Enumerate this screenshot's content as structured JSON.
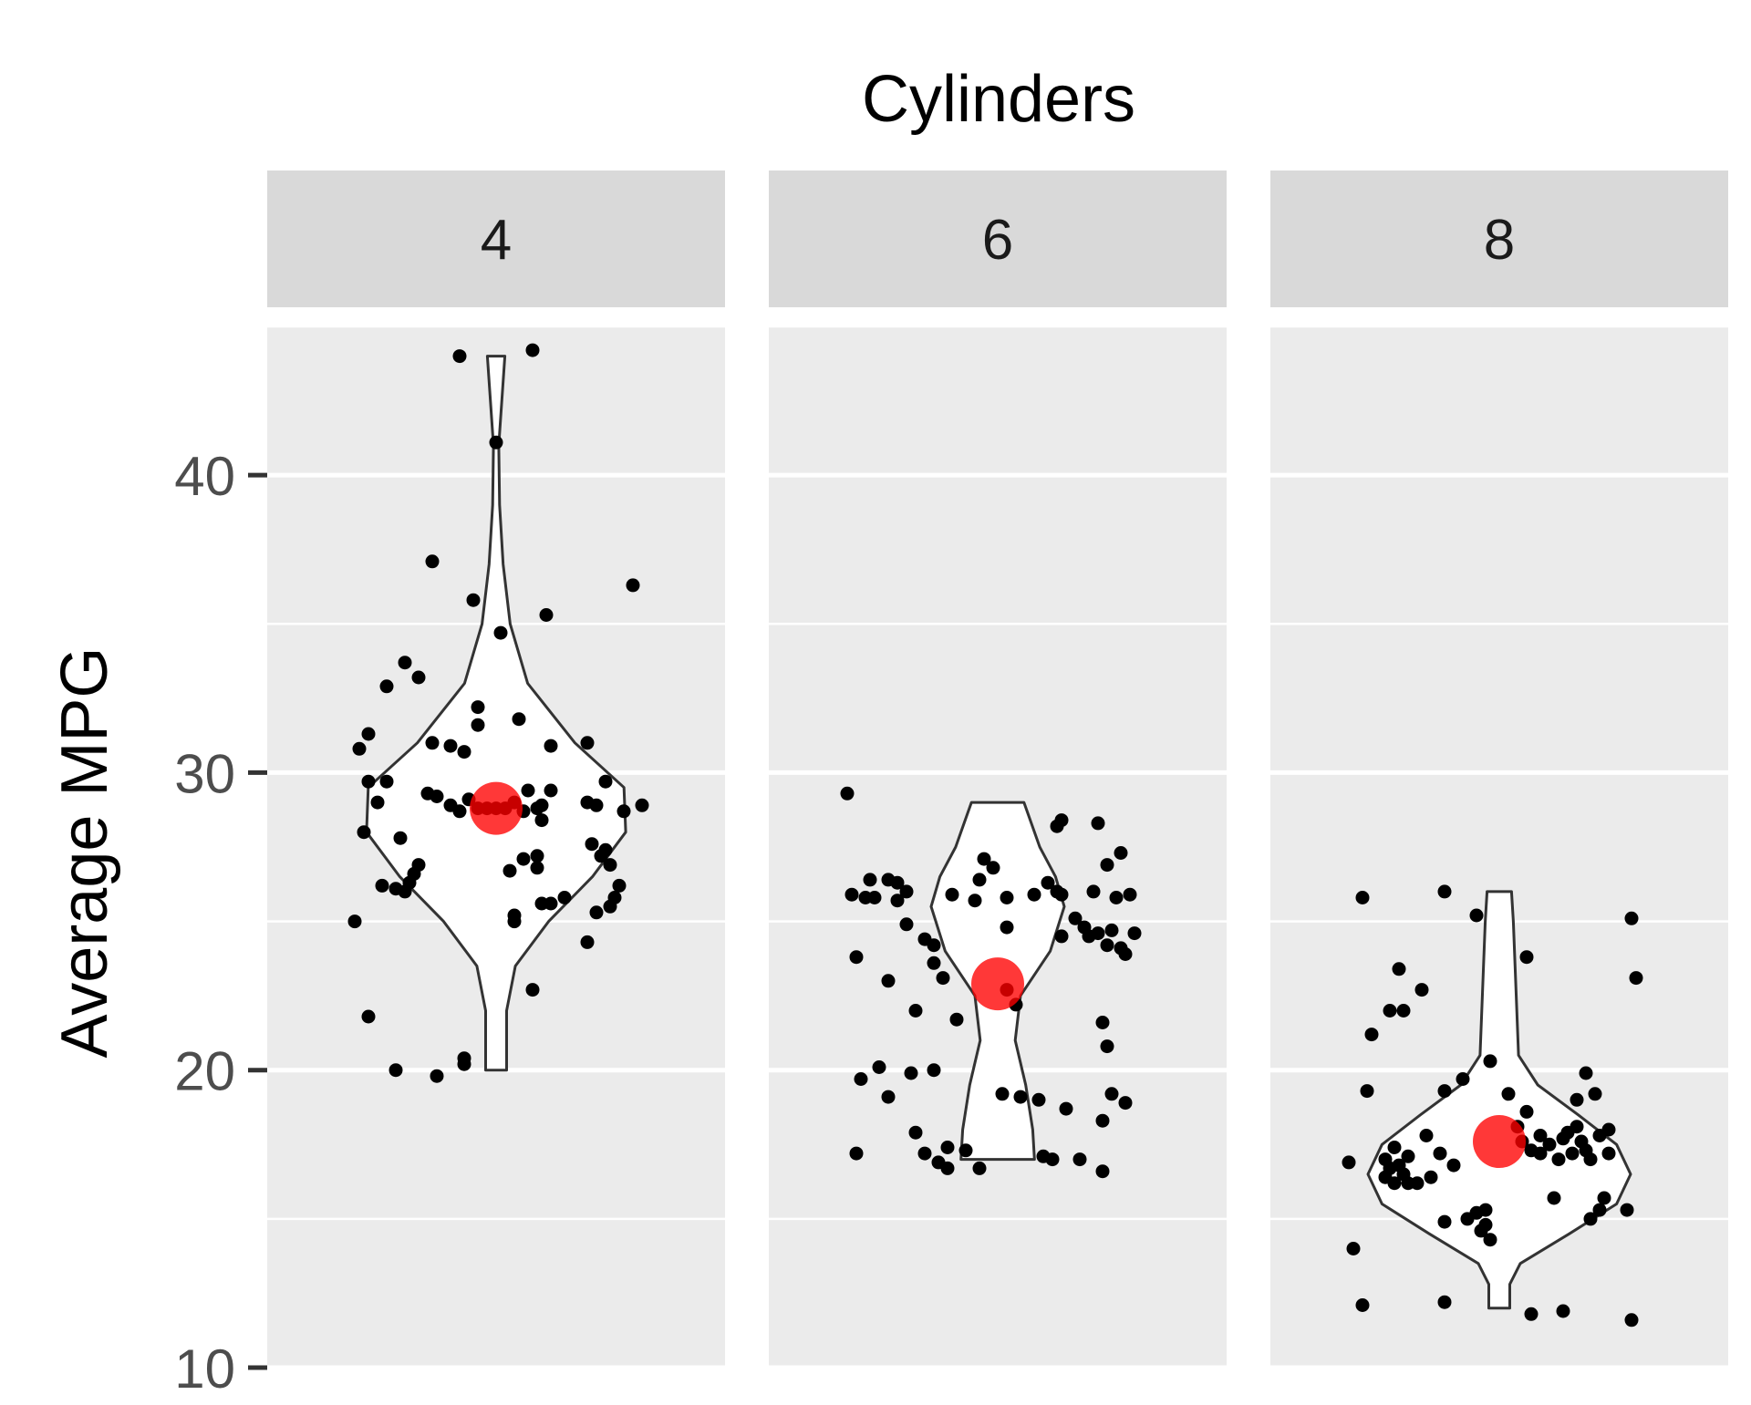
{
  "chart_data": {
    "type": "violin",
    "title": "Cylinders",
    "xlabel": "",
    "ylabel": "Average MPG",
    "ylim": [
      10,
      45
    ],
    "yticks": [
      10,
      20,
      30,
      40
    ],
    "grid": true,
    "facets": [
      {
        "label": "4",
        "mean": 28.8,
        "violin_range": [
          20,
          44
        ],
        "density": [
          [
            20.0,
            0.06
          ],
          [
            22.0,
            0.06
          ],
          [
            23.5,
            0.11
          ],
          [
            25.0,
            0.3
          ],
          [
            26.5,
            0.55
          ],
          [
            28.0,
            0.74
          ],
          [
            29.5,
            0.73
          ],
          [
            31.0,
            0.45
          ],
          [
            33.0,
            0.18
          ],
          [
            35.0,
            0.08
          ],
          [
            37.0,
            0.04
          ],
          [
            39.0,
            0.02
          ],
          [
            41.0,
            0.015
          ],
          [
            44.0,
            0.05
          ]
        ],
        "points": [
          [
            -0.28,
            21.8
          ],
          [
            -0.22,
            20.0
          ],
          [
            -0.13,
            19.8
          ],
          [
            -0.07,
            20.2
          ],
          [
            -0.07,
            20.4
          ],
          [
            -0.31,
            25.0
          ],
          [
            -0.25,
            26.2
          ],
          [
            -0.22,
            26.1
          ],
          [
            -0.2,
            26.0
          ],
          [
            -0.19,
            26.3
          ],
          [
            -0.18,
            26.6
          ],
          [
            -0.17,
            26.9
          ],
          [
            -0.21,
            27.8
          ],
          [
            -0.29,
            28.0
          ],
          [
            -0.26,
            29.0
          ],
          [
            -0.28,
            29.7
          ],
          [
            -0.24,
            29.7
          ],
          [
            -0.15,
            29.3
          ],
          [
            -0.13,
            29.2
          ],
          [
            -0.1,
            28.9
          ],
          [
            -0.08,
            28.7
          ],
          [
            -0.06,
            29.1
          ],
          [
            -0.04,
            28.8
          ],
          [
            -0.02,
            28.8
          ],
          [
            0.0,
            28.8
          ],
          [
            0.02,
            28.8
          ],
          [
            0.04,
            29.0
          ],
          [
            0.06,
            28.7
          ],
          [
            0.09,
            28.8
          ],
          [
            0.1,
            28.9
          ],
          [
            -0.3,
            30.8
          ],
          [
            -0.28,
            31.3
          ],
          [
            -0.24,
            32.9
          ],
          [
            -0.2,
            33.7
          ],
          [
            -0.17,
            33.2
          ],
          [
            -0.14,
            31.0
          ],
          [
            -0.1,
            30.9
          ],
          [
            -0.07,
            30.7
          ],
          [
            -0.04,
            31.6
          ],
          [
            -0.04,
            32.2
          ],
          [
            -0.05,
            35.8
          ],
          [
            0.01,
            34.7
          ],
          [
            0.05,
            31.8
          ],
          [
            0.11,
            35.3
          ],
          [
            0.12,
            30.9
          ],
          [
            0.03,
            26.7
          ],
          [
            0.06,
            27.1
          ],
          [
            0.09,
            26.8
          ],
          [
            0.09,
            27.2
          ],
          [
            0.1,
            28.4
          ],
          [
            0.12,
            29.4
          ],
          [
            0.07,
            29.4
          ],
          [
            0.04,
            25.0
          ],
          [
            0.04,
            25.2
          ],
          [
            0.1,
            25.6
          ],
          [
            0.12,
            25.6
          ],
          [
            0.15,
            25.8
          ],
          [
            0.2,
            24.3
          ],
          [
            0.22,
            25.3
          ],
          [
            0.25,
            25.5
          ],
          [
            0.26,
            25.8
          ],
          [
            0.27,
            26.2
          ],
          [
            0.25,
            26.9
          ],
          [
            0.23,
            27.2
          ],
          [
            0.21,
            27.6
          ],
          [
            0.24,
            27.4
          ],
          [
            0.22,
            28.9
          ],
          [
            0.28,
            28.7
          ],
          [
            0.32,
            28.9
          ],
          [
            0.2,
            29.0
          ],
          [
            0.24,
            29.7
          ],
          [
            0.2,
            31.0
          ],
          [
            0.08,
            22.7
          ],
          [
            -0.14,
            37.1
          ],
          [
            0.3,
            36.3
          ],
          [
            -0.08,
            44.0
          ],
          [
            0.08,
            44.2
          ],
          [
            0.0,
            41.1
          ]
        ]
      },
      {
        "label": "6",
        "mean": 22.9,
        "violin_range": [
          17,
          29
        ],
        "density": [
          [
            17.0,
            0.21
          ],
          [
            18.0,
            0.2
          ],
          [
            19.5,
            0.16
          ],
          [
            21.0,
            0.1
          ],
          [
            22.5,
            0.13
          ],
          [
            24.0,
            0.3
          ],
          [
            25.5,
            0.38
          ],
          [
            26.5,
            0.33
          ],
          [
            27.5,
            0.24
          ],
          [
            29.0,
            0.15
          ]
        ],
        "points": [
          [
            -0.33,
            29.3
          ],
          [
            -0.31,
            23.8
          ],
          [
            -0.31,
            17.2
          ],
          [
            -0.3,
            19.7
          ],
          [
            -0.26,
            20.1
          ],
          [
            -0.24,
            19.1
          ],
          [
            -0.24,
            23.0
          ],
          [
            -0.27,
            25.8
          ],
          [
            -0.29,
            25.8
          ],
          [
            -0.32,
            25.9
          ],
          [
            -0.28,
            26.4
          ],
          [
            -0.24,
            26.4
          ],
          [
            -0.22,
            26.3
          ],
          [
            -0.2,
            26.0
          ],
          [
            -0.22,
            25.7
          ],
          [
            -0.2,
            24.9
          ],
          [
            -0.16,
            24.4
          ],
          [
            -0.14,
            24.2
          ],
          [
            -0.14,
            23.6
          ],
          [
            -0.12,
            23.1
          ],
          [
            -0.1,
            25.9
          ],
          [
            -0.18,
            22.0
          ],
          [
            -0.19,
            19.9
          ],
          [
            -0.14,
            20.0
          ],
          [
            -0.18,
            17.9
          ],
          [
            -0.16,
            17.2
          ],
          [
            -0.13,
            16.9
          ],
          [
            -0.11,
            17.4
          ],
          [
            -0.11,
            16.7
          ],
          [
            -0.07,
            17.3
          ],
          [
            -0.04,
            16.7
          ],
          [
            -0.09,
            21.7
          ],
          [
            -0.05,
            25.7
          ],
          [
            -0.04,
            26.4
          ],
          [
            -0.03,
            27.1
          ],
          [
            -0.01,
            26.8
          ],
          [
            0.02,
            24.8
          ],
          [
            0.02,
            22.7
          ],
          [
            0.04,
            22.2
          ],
          [
            0.02,
            25.8
          ],
          [
            0.01,
            19.2
          ],
          [
            0.05,
            19.1
          ],
          [
            0.09,
            19.0
          ],
          [
            0.1,
            17.1
          ],
          [
            0.12,
            17.0
          ],
          [
            0.08,
            25.9
          ],
          [
            0.11,
            26.3
          ],
          [
            0.13,
            26.0
          ],
          [
            0.14,
            25.9
          ],
          [
            0.13,
            28.2
          ],
          [
            0.14,
            28.4
          ],
          [
            0.14,
            24.5
          ],
          [
            0.17,
            25.1
          ],
          [
            0.19,
            24.8
          ],
          [
            0.2,
            24.5
          ],
          [
            0.21,
            26.0
          ],
          [
            0.22,
            24.6
          ],
          [
            0.24,
            24.2
          ],
          [
            0.25,
            24.7
          ],
          [
            0.27,
            24.1
          ],
          [
            0.28,
            23.9
          ],
          [
            0.3,
            24.6
          ],
          [
            0.26,
            25.8
          ],
          [
            0.29,
            25.9
          ],
          [
            0.27,
            27.3
          ],
          [
            0.22,
            28.3
          ],
          [
            0.24,
            26.9
          ],
          [
            0.23,
            21.6
          ],
          [
            0.24,
            20.8
          ],
          [
            0.25,
            19.2
          ],
          [
            0.28,
            18.9
          ],
          [
            0.23,
            18.3
          ],
          [
            0.15,
            18.7
          ],
          [
            0.18,
            17.0
          ],
          [
            0.23,
            16.6
          ]
        ]
      },
      {
        "label": "8",
        "mean": 17.6,
        "violin_range": [
          12,
          26
        ],
        "density": [
          [
            12.0,
            0.06
          ],
          [
            12.8,
            0.06
          ],
          [
            13.5,
            0.12
          ],
          [
            14.5,
            0.4
          ],
          [
            15.5,
            0.67
          ],
          [
            16.5,
            0.75
          ],
          [
            17.5,
            0.67
          ],
          [
            18.5,
            0.45
          ],
          [
            19.5,
            0.22
          ],
          [
            20.5,
            0.11
          ],
          [
            22.0,
            0.1
          ],
          [
            23.5,
            0.09
          ],
          [
            25.0,
            0.08
          ],
          [
            26.0,
            0.07
          ]
        ],
        "points": [
          [
            -0.3,
            25.8
          ],
          [
            -0.33,
            16.9
          ],
          [
            -0.32,
            14.0
          ],
          [
            -0.3,
            12.1
          ],
          [
            -0.29,
            19.3
          ],
          [
            -0.28,
            21.2
          ],
          [
            -0.24,
            22.0
          ],
          [
            -0.21,
            22.0
          ],
          [
            -0.22,
            23.4
          ],
          [
            -0.17,
            22.7
          ],
          [
            -0.2,
            17.1
          ],
          [
            -0.22,
            16.8
          ],
          [
            -0.21,
            16.5
          ],
          [
            -0.24,
            16.7
          ],
          [
            -0.25,
            17.0
          ],
          [
            -0.23,
            17.4
          ],
          [
            -0.25,
            16.4
          ],
          [
            -0.23,
            16.2
          ],
          [
            -0.2,
            16.2
          ],
          [
            -0.18,
            16.2
          ],
          [
            -0.15,
            16.4
          ],
          [
            -0.13,
            17.2
          ],
          [
            -0.1,
            16.8
          ],
          [
            -0.16,
            17.8
          ],
          [
            -0.12,
            19.3
          ],
          [
            -0.08,
            19.7
          ],
          [
            -0.12,
            14.9
          ],
          [
            -0.07,
            15.0
          ],
          [
            -0.05,
            15.2
          ],
          [
            -0.04,
            14.6
          ],
          [
            -0.03,
            14.8
          ],
          [
            -0.03,
            15.3
          ],
          [
            -0.02,
            14.3
          ],
          [
            -0.12,
            12.2
          ],
          [
            -0.12,
            26.0
          ],
          [
            -0.05,
            25.2
          ],
          [
            -0.02,
            20.3
          ],
          [
            0.02,
            19.2
          ],
          [
            0.04,
            18.1
          ],
          [
            0.06,
            18.6
          ],
          [
            0.07,
            17.3
          ],
          [
            0.09,
            17.8
          ],
          [
            0.05,
            17.6
          ],
          [
            0.11,
            17.5
          ],
          [
            0.14,
            17.7
          ],
          [
            0.15,
            17.9
          ],
          [
            0.09,
            17.2
          ],
          [
            0.13,
            17.0
          ],
          [
            0.12,
            15.7
          ],
          [
            0.16,
            17.2
          ],
          [
            0.17,
            18.1
          ],
          [
            0.18,
            17.6
          ],
          [
            0.2,
            17.0
          ],
          [
            0.22,
            17.8
          ],
          [
            0.19,
            17.3
          ],
          [
            0.24,
            17.2
          ],
          [
            0.17,
            19.0
          ],
          [
            0.19,
            19.9
          ],
          [
            0.21,
            19.2
          ],
          [
            0.24,
            18.0
          ],
          [
            0.23,
            15.7
          ],
          [
            0.2,
            15.0
          ],
          [
            0.22,
            15.3
          ],
          [
            0.28,
            15.3
          ],
          [
            0.3,
            23.1
          ],
          [
            0.06,
            23.8
          ],
          [
            0.29,
            25.1
          ],
          [
            0.07,
            11.8
          ],
          [
            0.14,
            11.9
          ],
          [
            0.29,
            11.6
          ]
        ]
      }
    ],
    "colors": {
      "panel_background": "#ebebeb",
      "strip_background": "#d9d9d9",
      "gridline": "#ffffff",
      "violin_fill": "#ffffff",
      "violin_outline": "#333333",
      "points": "#000000",
      "mean_marker": "#ff0000",
      "axis_text": "#4d4d4d",
      "title_text": "#000000"
    }
  }
}
